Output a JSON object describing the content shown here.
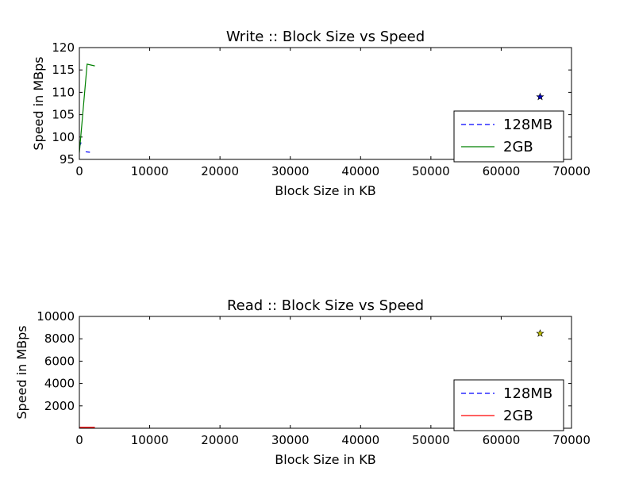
{
  "chart_data": [
    {
      "type": "line",
      "title": "Write :: Block Size vs Speed",
      "xlabel": "Block Size in KB",
      "ylabel": "Speed in MBps",
      "xlim": [
        0,
        70000
      ],
      "ylim": [
        95,
        120
      ],
      "xticks": [
        0,
        10000,
        20000,
        30000,
        40000,
        50000,
        60000,
        70000
      ],
      "yticks": [
        95,
        100,
        105,
        110,
        115,
        120
      ],
      "grid": false,
      "legend_position": "lower-right",
      "legend": [
        {
          "label": "128MB",
          "color": "#0000ff",
          "dash": true
        },
        {
          "label": "2GB",
          "color": "#008000",
          "dash": false
        }
      ],
      "series": [
        {
          "color": "#0000ff",
          "dash": true,
          "x": [
            0,
            300
          ],
          "y": [
            97.8,
            99.0
          ]
        },
        {
          "color": "#0000ff",
          "dash": true,
          "x": [
            900,
            1500
          ],
          "y": [
            96.7,
            96.6
          ]
        },
        {
          "color": "#008000",
          "dash": false,
          "x": [
            0,
            1100,
            2200
          ],
          "y": [
            96.5,
            116.3,
            115.9
          ]
        }
      ],
      "markers": [
        {
          "x": 65536,
          "y": 109,
          "shape": "star",
          "color": "#0000bf"
        }
      ]
    },
    {
      "type": "line",
      "title": "Read :: Block Size vs Speed",
      "xlabel": "Block Size in KB",
      "ylabel": "Speed in MBps",
      "xlim": [
        0,
        70000
      ],
      "ylim": [
        0,
        10000
      ],
      "xticks": [
        0,
        10000,
        20000,
        30000,
        40000,
        50000,
        60000,
        70000
      ],
      "yticks": [
        2000,
        4000,
        6000,
        8000,
        10000
      ],
      "grid": false,
      "legend_position": "lower-right",
      "legend": [
        {
          "label": "128MB",
          "color": "#0000ff",
          "dash": true
        },
        {
          "label": "2GB",
          "color": "#ff0000",
          "dash": false
        }
      ],
      "series": [
        {
          "color": "#ff0000",
          "dash": false,
          "x": [
            0,
            2200
          ],
          "y": [
            80,
            80
          ]
        }
      ],
      "markers": [
        {
          "x": 65536,
          "y": 8480,
          "shape": "star",
          "color": "#bfbf00"
        }
      ]
    }
  ]
}
